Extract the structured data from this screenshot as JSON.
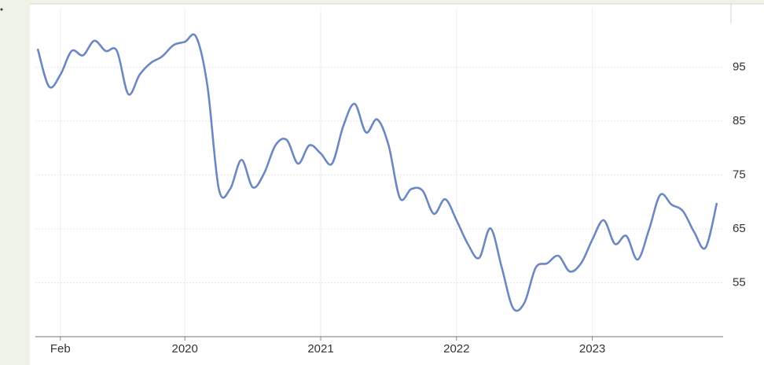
{
  "chart_data": {
    "type": "line",
    "categories": [
      null,
      null,
      "Feb",
      null,
      null,
      null,
      null,
      null,
      null,
      null,
      null,
      null,
      null,
      "2020",
      null,
      null,
      null,
      null,
      null,
      null,
      null,
      null,
      null,
      null,
      null,
      "2021",
      null,
      null,
      null,
      null,
      null,
      null,
      null,
      null,
      null,
      null,
      null,
      "2022",
      null,
      null,
      null,
      null,
      null,
      null,
      null,
      null,
      null,
      null,
      null,
      "2023",
      null,
      null,
      null,
      null,
      null,
      null,
      null,
      null,
      null,
      null,
      null
    ],
    "values": [
      98.4,
      91.4,
      93.6,
      98,
      97.2,
      99.9,
      98,
      98,
      90,
      93.6,
      95.8,
      97,
      99.1,
      99.7,
      100.6,
      91.4,
      72.4,
      72.4,
      77.8,
      72.7,
      75.3,
      80.5,
      81.5,
      77.1,
      80.5,
      79,
      77.1,
      84.1,
      88.2,
      82.9,
      85.3,
      80.5,
      70.7,
      72.4,
      72.1,
      67.8,
      70.5,
      66.6,
      62.2,
      59.6,
      65.1,
      57.8,
      50.3,
      51.3,
      57.8,
      58.6,
      60,
      57.1,
      58.6,
      63,
      66.6,
      62.2,
      63.7,
      59.3,
      64.8,
      71.3,
      69.5,
      68.3,
      64.4,
      61.5,
      69.8
    ],
    "color": "#6b88c2",
    "ylim": [
      45,
      106
    ],
    "yticks": [
      55,
      65,
      75,
      85,
      95
    ],
    "grid": true
  }
}
